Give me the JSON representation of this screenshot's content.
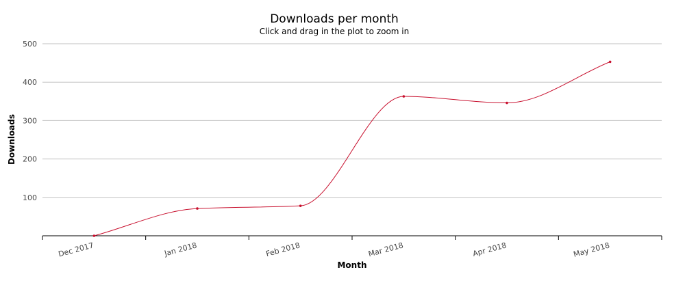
{
  "chart_data": {
    "type": "line",
    "title": "Downloads per month",
    "subtitle": "Click and drag in the plot to zoom in",
    "xlabel": "Month",
    "ylabel": "Downloads",
    "categories": [
      "Dec 2017",
      "Jan 2018",
      "Feb 2018",
      "Mar 2018",
      "Apr 2018",
      "May 2018"
    ],
    "series": [
      {
        "values": [
          0,
          71,
          78,
          363,
          346,
          453
        ]
      }
    ],
    "y_ticks": [
      100,
      200,
      300,
      400,
      500
    ],
    "ylim": [
      0,
      500
    ],
    "grid": true,
    "smooth": true,
    "line_color": "#c8102e"
  }
}
